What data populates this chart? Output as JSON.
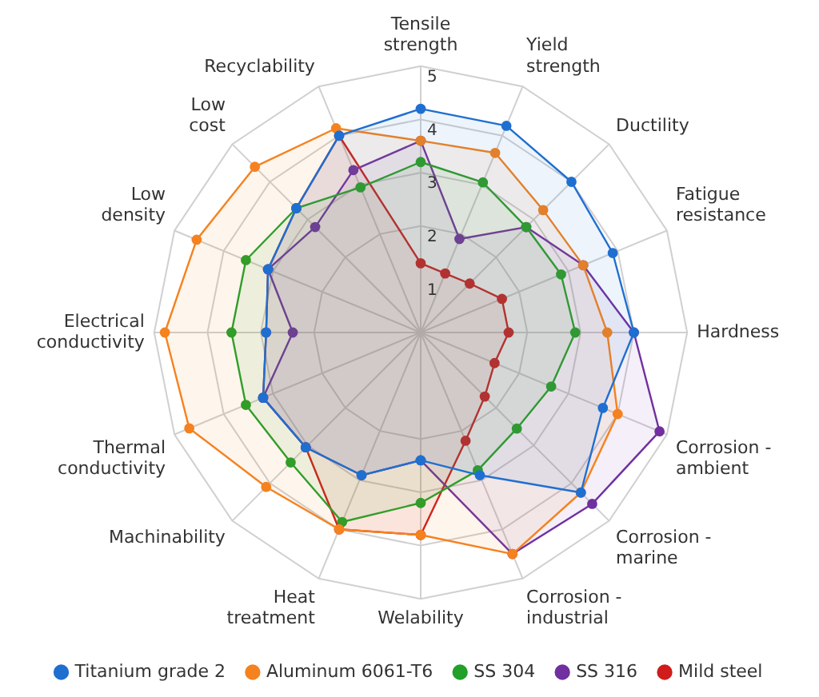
{
  "chart_data": {
    "type": "radar",
    "categories": [
      "Tensile strength",
      "Yield strength",
      "Ductility",
      "Fatigue resistance",
      "Hardness",
      "Corrosion - ambient",
      "Corrosion - marine",
      "Corrosion - industrial",
      "Welability",
      "Heat treatment",
      "Machinability",
      "Thermal conductivity",
      "Electrical conductivity",
      "Low density",
      "Low cost",
      "Recyclability"
    ],
    "series": [
      {
        "name": "Titanium grade 2",
        "color": "#1f6fd1",
        "values": [
          4.2,
          4.2,
          4.0,
          3.9,
          4.0,
          3.7,
          4.25,
          2.9,
          2.4,
          2.9,
          3.05,
          3.2,
          2.9,
          3.1,
          3.3,
          4.0
        ]
      },
      {
        "name": "Aluminum 6061-T6",
        "color": "#f5821f",
        "values": [
          3.6,
          3.65,
          3.25,
          3.3,
          3.5,
          4.0,
          4.25,
          4.5,
          3.8,
          4.0,
          4.1,
          4.7,
          4.8,
          4.55,
          4.4,
          4.15
        ]
      },
      {
        "name": "SS 304",
        "color": "#22a02a",
        "values": [
          3.2,
          3.05,
          2.8,
          2.85,
          2.9,
          2.65,
          2.55,
          2.8,
          3.2,
          3.85,
          3.45,
          3.55,
          3.55,
          3.55,
          3.3,
          2.95
        ]
      },
      {
        "name": "SS 316",
        "color": "#7030a0",
        "values": [
          3.6,
          1.9,
          2.8,
          3.3,
          4.0,
          4.85,
          4.55,
          4.5,
          2.4,
          2.9,
          3.05,
          3.2,
          2.4,
          3.1,
          2.8,
          3.3
        ]
      },
      {
        "name": "Mild steel",
        "color": "#d01c1c",
        "values": [
          1.3,
          1.2,
          1.3,
          1.65,
          1.65,
          1.5,
          1.7,
          2.2,
          3.8,
          4.0,
          3.05,
          3.2,
          2.9,
          3.1,
          3.3,
          4.0
        ]
      }
    ],
    "ylim": [
      0,
      5
    ],
    "yticks": [
      1,
      2,
      3,
      4,
      5
    ],
    "grid": true,
    "legend": "bottom",
    "marker": "circle"
  }
}
